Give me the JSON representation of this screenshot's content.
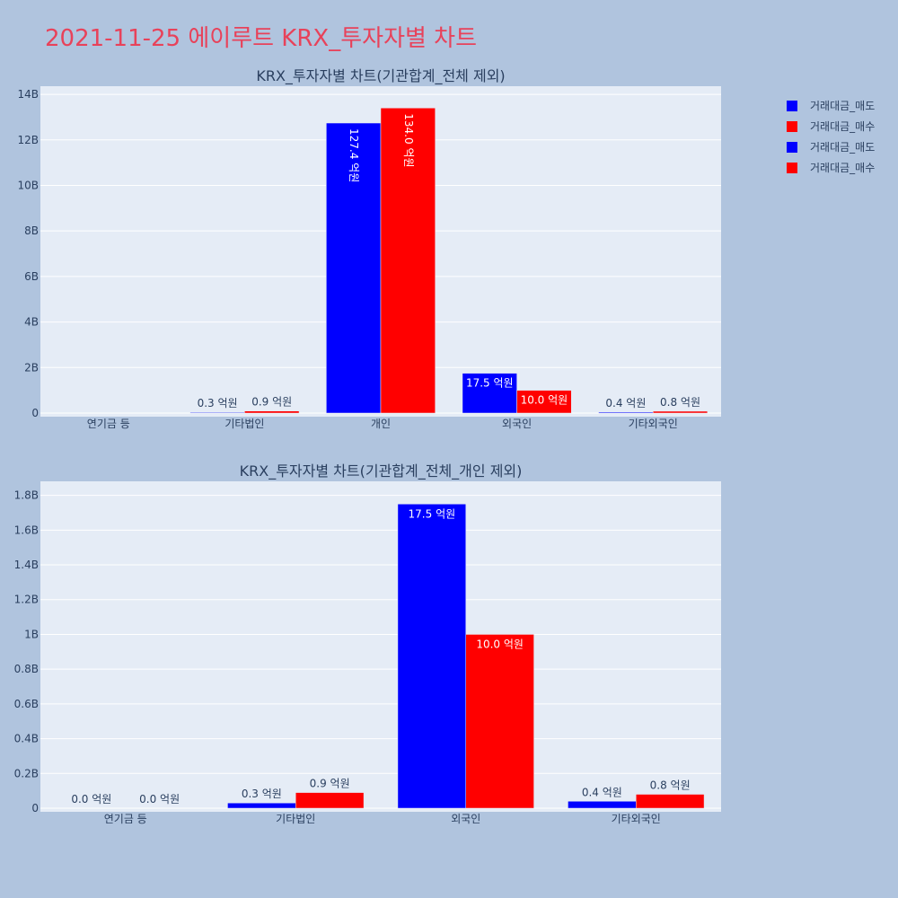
{
  "page": {
    "title": "2021-11-25 에이루트 KRX_투자자별 차트"
  },
  "legend": [
    {
      "label": "거래대금_매도",
      "color": "#0000ff"
    },
    {
      "label": "거래대금_매수",
      "color": "#ff0000"
    },
    {
      "label": "거래대금_매도",
      "color": "#0000ff"
    },
    {
      "label": "거래대금_매수",
      "color": "#ff0000"
    }
  ],
  "chart_data": [
    {
      "type": "bar",
      "title": "KRX_투자자별 차트(기관합계_전체 제외)",
      "categories": [
        "연기금 등",
        "기타법인",
        "개인",
        "외국인",
        "기타외국인"
      ],
      "series": [
        {
          "name": "거래대금_매도",
          "color": "#0000ff",
          "values": [
            0,
            30000000,
            12740000000,
            1750000000,
            40000000
          ],
          "labels": [
            "",
            "0.3 억원",
            "127.4 억원",
            "17.5 억원",
            "0.4 억원"
          ]
        },
        {
          "name": "거래대금_매수",
          "color": "#ff0000",
          "values": [
            0,
            90000000,
            13400000000,
            1000000000,
            80000000
          ],
          "labels": [
            "",
            "0.9 억원",
            "134.0 억원",
            "10.0 억원",
            "0.8 억원"
          ]
        }
      ],
      "ylim": [
        0,
        14200000000
      ],
      "yticks": [
        0,
        2000000000,
        4000000000,
        6000000000,
        8000000000,
        10000000000,
        12000000000,
        14000000000
      ],
      "ytick_labels": [
        "0",
        "2B",
        "4B",
        "6B",
        "8B",
        "10B",
        "12B",
        "14B"
      ],
      "grid": true
    },
    {
      "type": "bar",
      "title": "KRX_투자자별 차트(기관합계_전체_개인 제외)",
      "categories": [
        "연기금 등",
        "기타법인",
        "외국인",
        "기타외국인"
      ],
      "series": [
        {
          "name": "거래대금_매도",
          "color": "#0000ff",
          "values": [
            0,
            30000000,
            1750000000,
            40000000
          ],
          "labels": [
            "0.0 억원",
            "0.3 억원",
            "17.5 억원",
            "0.4 억원"
          ]
        },
        {
          "name": "거래대금_매수",
          "color": "#ff0000",
          "values": [
            0,
            90000000,
            1000000000,
            80000000
          ],
          "labels": [
            "0.0 억원",
            "0.9 억원",
            "10.0 억원",
            "0.8 억원"
          ]
        }
      ],
      "ylim": [
        0,
        1860000000
      ],
      "yticks": [
        0,
        200000000,
        400000000,
        600000000,
        800000000,
        1000000000,
        1200000000,
        1400000000,
        1600000000,
        1800000000
      ],
      "ytick_labels": [
        "0",
        "0.2B",
        "0.4B",
        "0.6B",
        "0.8B",
        "1B",
        "1.2B",
        "1.4B",
        "1.6B",
        "1.8B"
      ],
      "grid": true
    }
  ]
}
